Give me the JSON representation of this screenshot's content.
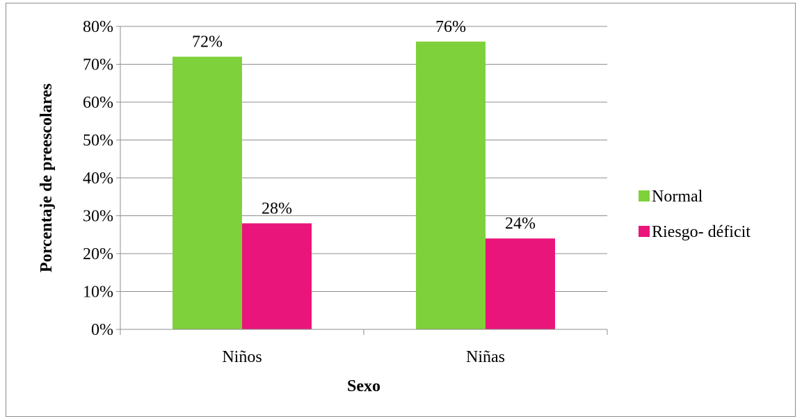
{
  "chart_data": {
    "type": "bar",
    "title": "",
    "xlabel": "Sexo",
    "ylabel": "Porcentaje de preescolares",
    "categories": [
      "Niños",
      "Niñas"
    ],
    "ylim": [
      0,
      80
    ],
    "yticks": [
      "0%",
      "10%",
      "20%",
      "30%",
      "40%",
      "50%",
      "60%",
      "70%",
      "80%"
    ],
    "grid": true,
    "legend_position": "right",
    "series": [
      {
        "name": "Normal",
        "values": [
          72,
          76
        ],
        "labels": [
          "72%",
          "76%"
        ],
        "color": "#7FD13B"
      },
      {
        "name": "Riesgo- déficit",
        "values": [
          28,
          24
        ],
        "labels": [
          "28%",
          "24%"
        ],
        "color": "#EA157A"
      }
    ]
  }
}
